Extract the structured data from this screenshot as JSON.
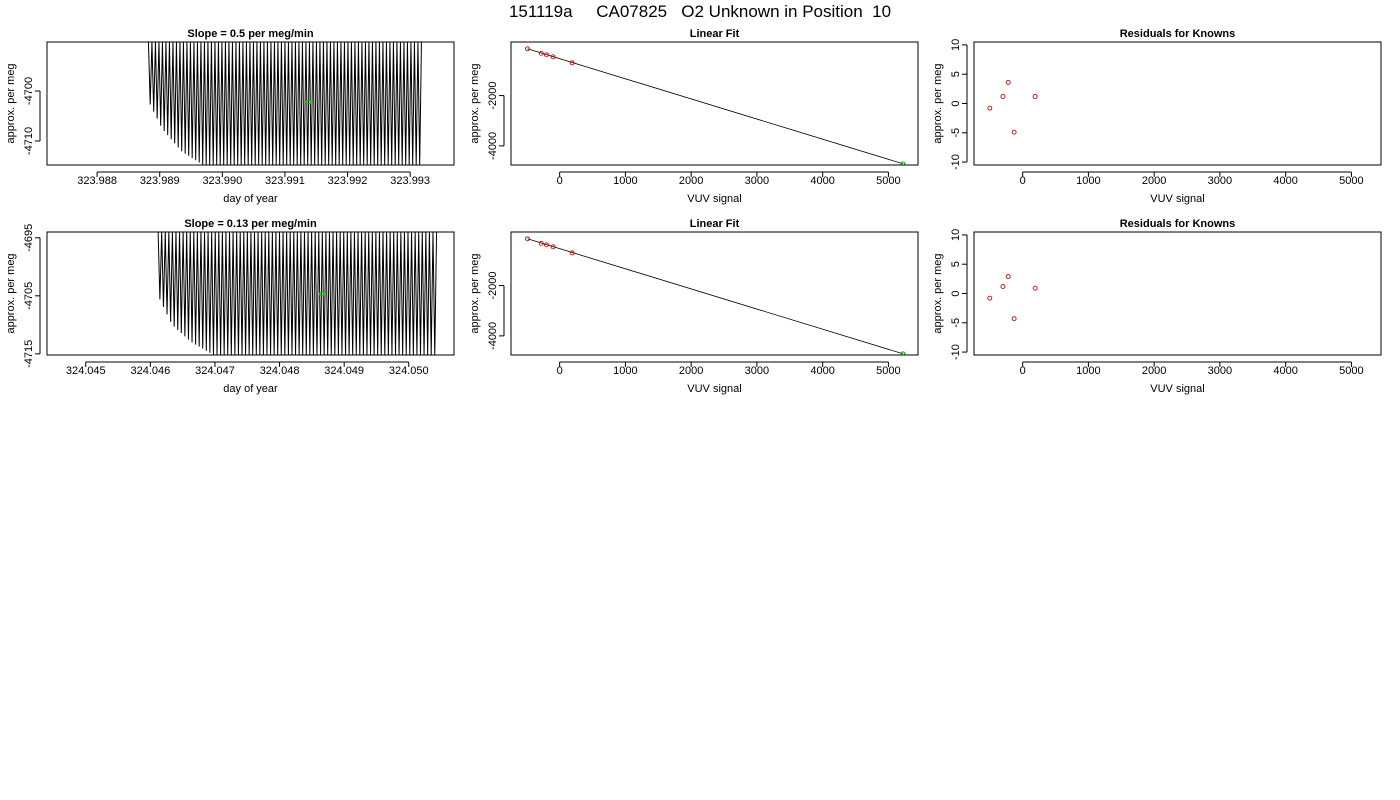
{
  "page": {
    "title": "151119a     CA07825   O2 Unknown in Position  10",
    "colors": {
      "line": "#000000",
      "known_point": "#cc0000",
      "unknown_point": "#00cc00"
    }
  },
  "chart_data": [
    {
      "id": "p1",
      "type": "line",
      "title": "Slope =  0.5  per meg/min",
      "xlabel": "day of year",
      "ylabel": "approx. per meg",
      "xlim": [
        323.9872,
        323.9937
      ],
      "ylim": [
        -4714.8,
        -4690.2
      ],
      "xticks": [
        323.988,
        323.989,
        323.99,
        323.991,
        323.992,
        323.993
      ],
      "yticks": [
        -4700,
        -4710
      ],
      "xdecimals": 3,
      "trace": {
        "x_start": 323.98882,
        "x_end": 323.99318,
        "cycles": 78,
        "lower_envelope": [
          [
            0,
            -4702
          ],
          [
            0.05,
            -4707.5
          ],
          [
            0.12,
            -4712
          ],
          [
            0.2,
            -4714.8
          ],
          [
            1,
            -4714.8
          ]
        ],
        "upper_envelope": -4690.2
      },
      "unknown_point": {
        "x": 323.99138,
        "y": -4702.2
      },
      "grid": false,
      "legend": "none"
    },
    {
      "id": "p2",
      "type": "scatter",
      "title": "Linear Fit",
      "xlabel": "VUV signal",
      "ylabel": "approx. per meg",
      "xlim": [
        -740,
        5450
      ],
      "ylim": [
        -4760,
        130
      ],
      "xticks": [
        0,
        1000,
        2000,
        3000,
        4000,
        5000
      ],
      "yticks": [
        -2000,
        -4000
      ],
      "xdecimals": 0,
      "fit_line": [
        [
          -490,
          -140
        ],
        [
          5220,
          -4710
        ]
      ],
      "known_points": [
        [
          -490,
          -140
        ],
        [
          -280,
          -320
        ],
        [
          -200,
          -380
        ],
        [
          -100,
          -460
        ],
        [
          190,
          -700
        ]
      ],
      "unknown_point": {
        "x": 5220,
        "y": -4710
      },
      "grid": false,
      "legend": "none"
    },
    {
      "id": "p3",
      "type": "scatter",
      "title": "Residuals for Knowns",
      "xlabel": "VUV signal",
      "ylabel": "approx. per meg",
      "xlim": [
        -740,
        5450
      ],
      "ylim": [
        -10.5,
        10.5
      ],
      "xticks": [
        0,
        1000,
        2000,
        3000,
        4000,
        5000
      ],
      "yticks": [
        10,
        5,
        0,
        -5,
        -10
      ],
      "xdecimals": 0,
      "known_points": [
        [
          -500,
          -0.8
        ],
        [
          -300,
          1.2
        ],
        [
          -220,
          3.6
        ],
        [
          -130,
          -4.9
        ],
        [
          190,
          1.2
        ]
      ],
      "grid": false,
      "legend": "none"
    },
    {
      "id": "p4",
      "type": "line",
      "title": "Slope =  0.13  per meg/min",
      "xlabel": "day of year",
      "ylabel": "approx. per meg",
      "xlim": [
        324.0444,
        324.0507
      ],
      "ylim": [
        -4715.2,
        -4694.0
      ],
      "xticks": [
        324.045,
        324.046,
        324.047,
        324.048,
        324.049,
        324.05
      ],
      "yticks": [
        -4695,
        -4705,
        -4715
      ],
      "xdecimals": 3,
      "trace": {
        "x_start": 324.04612,
        "x_end": 324.05043,
        "cycles": 78,
        "lower_envelope": [
          [
            0,
            -4705
          ],
          [
            0.05,
            -4710
          ],
          [
            0.12,
            -4713
          ],
          [
            0.2,
            -4715.2
          ],
          [
            1,
            -4715.2
          ]
        ],
        "upper_envelope": -4694.0
      },
      "unknown_point": {
        "x": 324.04865,
        "y": -4704.7
      },
      "grid": false,
      "legend": "none"
    },
    {
      "id": "p5",
      "type": "scatter",
      "title": "Linear Fit",
      "xlabel": "VUV signal",
      "ylabel": "approx. per meg",
      "xlim": [
        -740,
        5450
      ],
      "ylim": [
        -4760,
        130
      ],
      "xticks": [
        0,
        1000,
        2000,
        3000,
        4000,
        5000
      ],
      "yticks": [
        -2000,
        -4000
      ],
      "xdecimals": 0,
      "fit_line": [
        [
          -490,
          -140
        ],
        [
          5220,
          -4710
        ]
      ],
      "known_points": [
        [
          -490,
          -140
        ],
        [
          -280,
          -320
        ],
        [
          -200,
          -380
        ],
        [
          -100,
          -460
        ],
        [
          190,
          -700
        ]
      ],
      "unknown_point": {
        "x": 5220,
        "y": -4710
      },
      "grid": false,
      "legend": "none"
    },
    {
      "id": "p6",
      "type": "scatter",
      "title": "Residuals for Knowns",
      "xlabel": "VUV signal",
      "ylabel": "approx. per meg",
      "xlim": [
        -740,
        5450
      ],
      "ylim": [
        -10.5,
        10.5
      ],
      "xticks": [
        0,
        1000,
        2000,
        3000,
        4000,
        5000
      ],
      "yticks": [
        10,
        5,
        0,
        -5,
        -10
      ],
      "xdecimals": 0,
      "known_points": [
        [
          -500,
          -0.8
        ],
        [
          -300,
          1.2
        ],
        [
          -220,
          2.9
        ],
        [
          -130,
          -4.3
        ],
        [
          190,
          0.9
        ]
      ],
      "grid": false,
      "legend": "none"
    }
  ]
}
